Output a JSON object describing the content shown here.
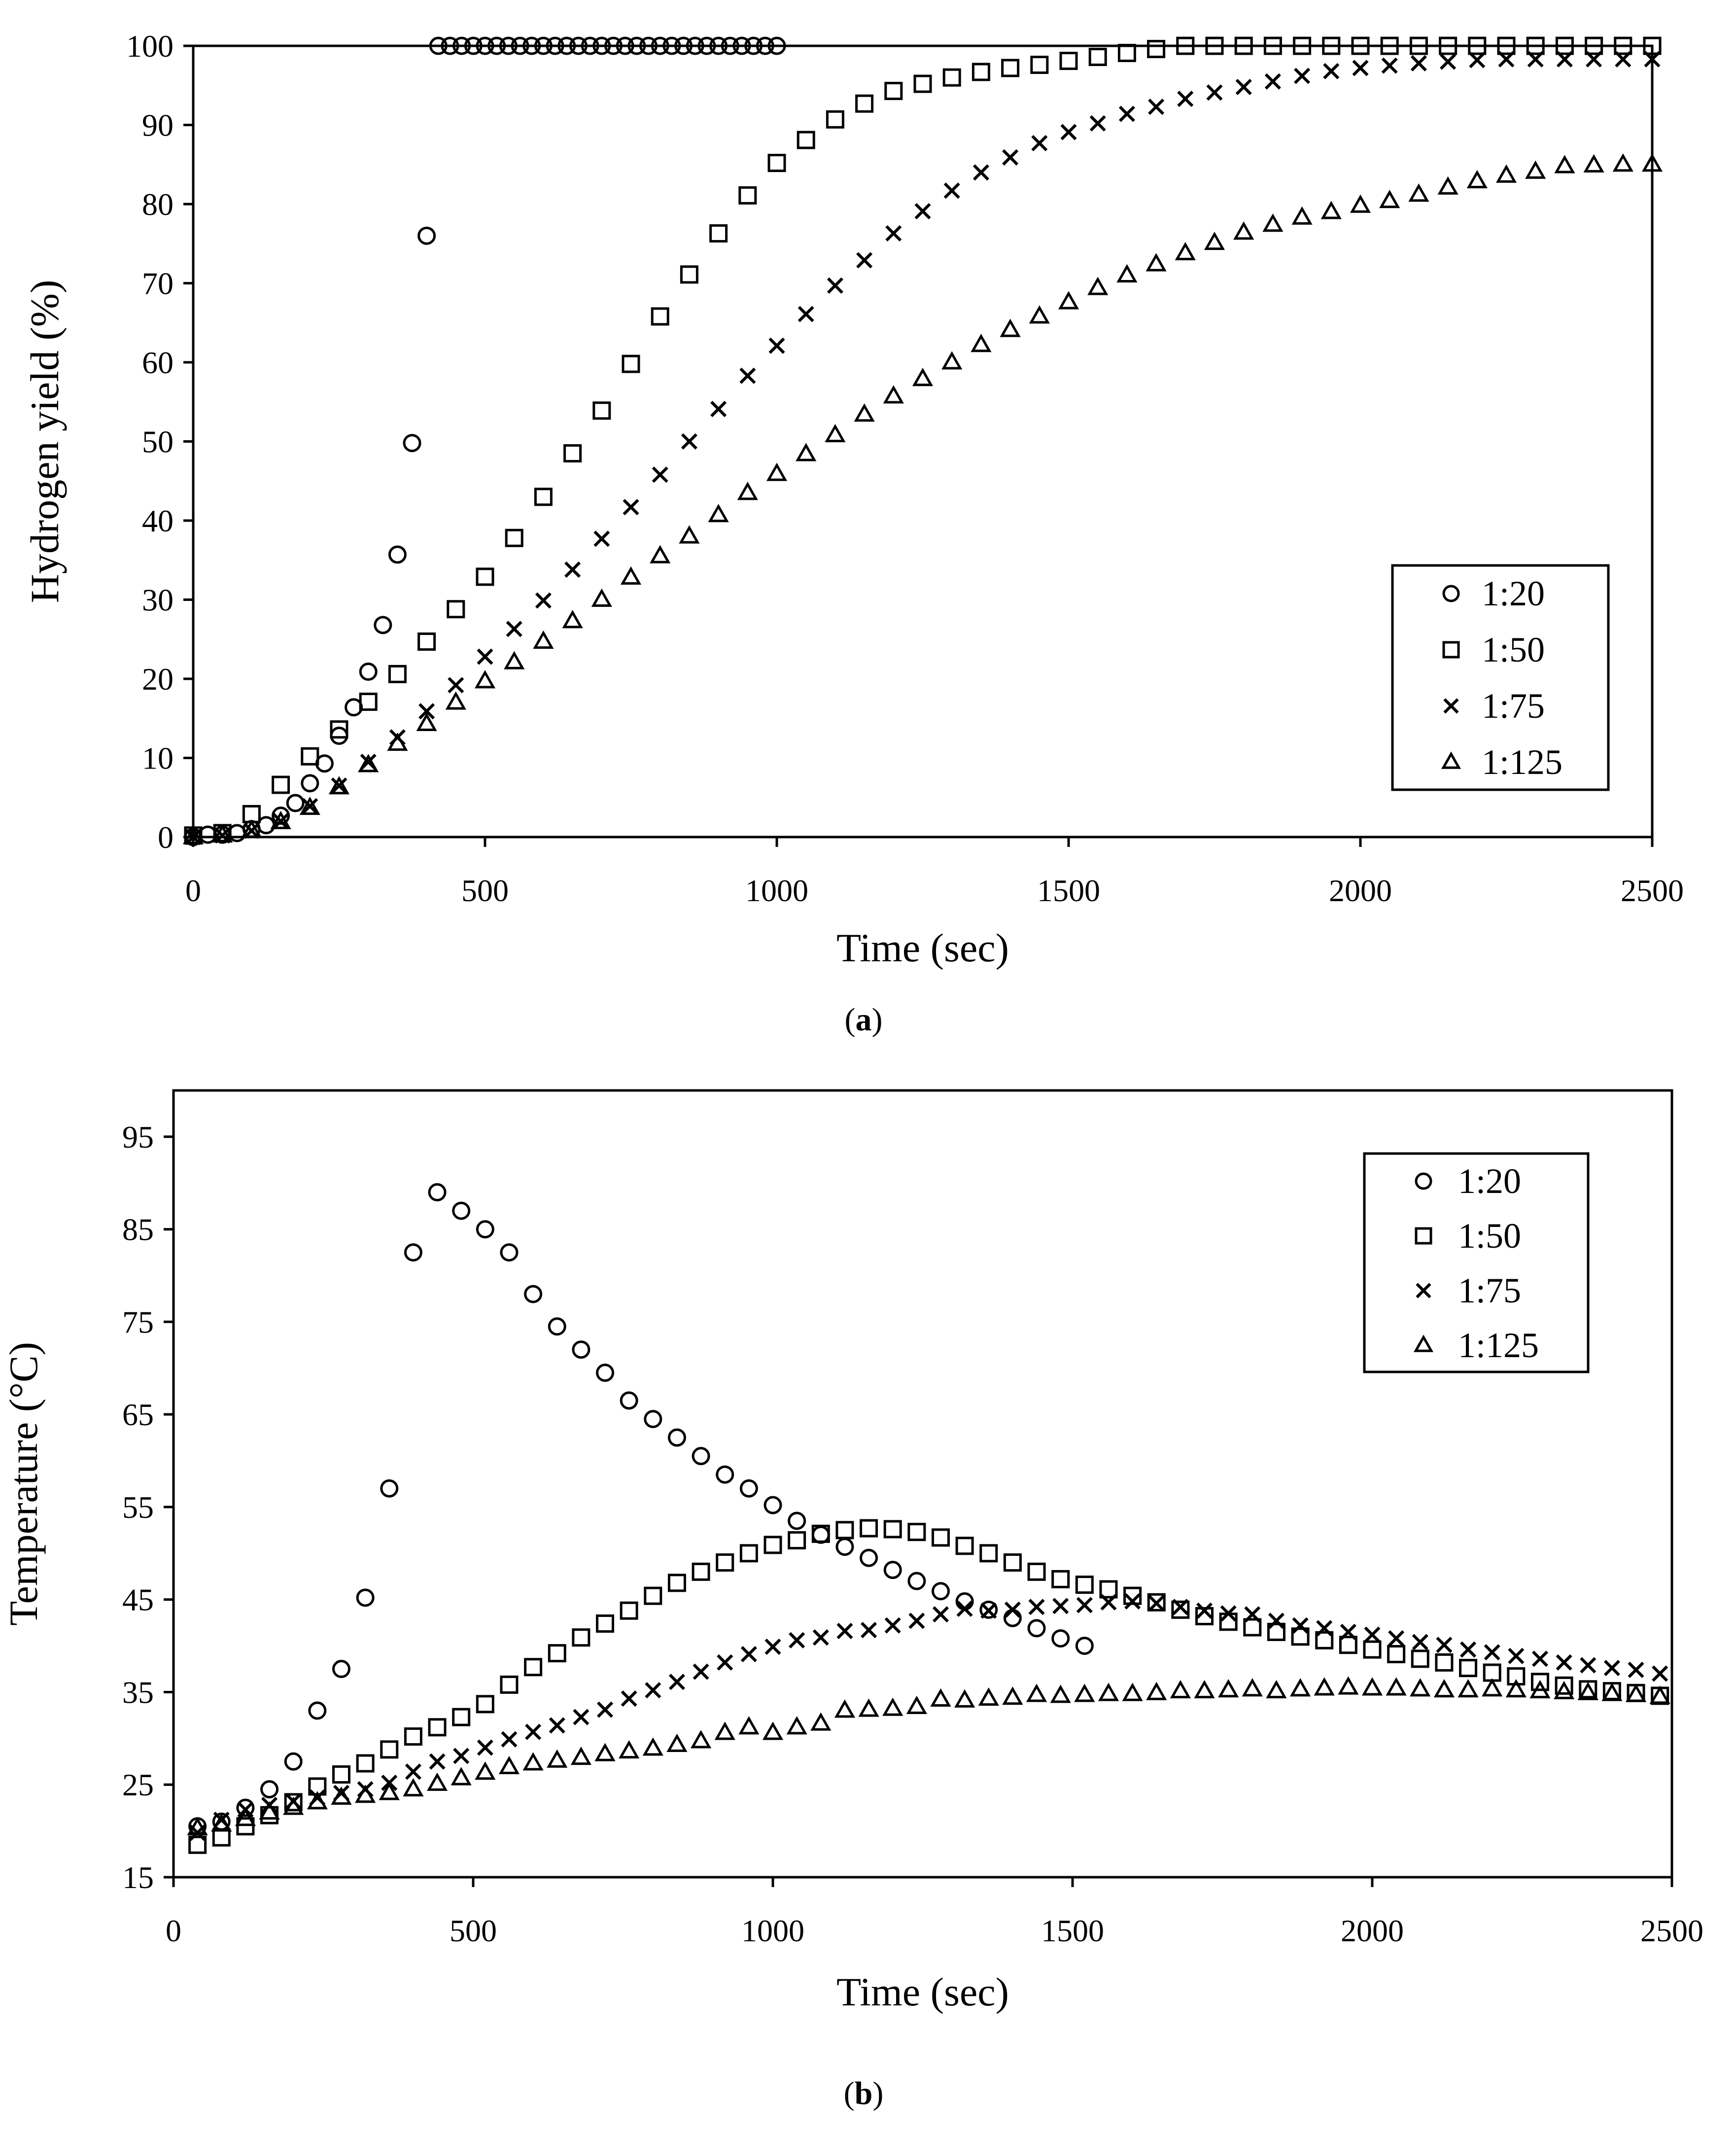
{
  "chart_data": [
    {
      "type": "scatter",
      "panel_label": "(a)",
      "xlabel": "Time (sec)",
      "ylabel": "Hydrogen yield (%)",
      "xlim": [
        0,
        2500
      ],
      "ylim": [
        0,
        100
      ],
      "xticks": [
        0,
        500,
        1000,
        1500,
        2000,
        2500
      ],
      "yticks": [
        0,
        10,
        20,
        30,
        40,
        50,
        60,
        70,
        80,
        90,
        100
      ],
      "grid": false,
      "legend_position": "bottom-right",
      "series": [
        {
          "name": "1:20",
          "marker": "circle",
          "x": [
            0,
            25,
            50,
            75,
            100,
            125,
            150,
            175,
            200,
            225,
            250,
            275,
            300,
            325,
            350,
            375,
            400,
            420,
            440,
            460,
            480,
            500,
            520,
            540,
            560,
            580,
            600,
            620,
            640,
            660,
            680,
            700,
            720,
            740,
            760,
            780,
            800,
            820,
            840,
            860,
            880,
            900,
            920,
            940,
            960,
            980,
            1000
          ],
          "y": [
            0,
            0.3,
            0.3,
            0.5,
            1,
            1.5,
            2.7,
            4.3,
            6.8,
            9.3,
            12.8,
            16.4,
            20.9,
            26.8,
            35.7,
            49.8,
            76,
            100,
            100,
            100,
            100,
            100,
            100,
            100,
            100,
            100,
            100,
            100,
            100,
            100,
            100,
            100,
            100,
            100,
            100,
            100,
            100,
            100,
            100,
            100,
            100,
            100,
            100,
            100,
            100,
            100,
            100
          ]
        },
        {
          "name": "1:50",
          "marker": "square",
          "x": [
            0,
            50,
            100,
            150,
            200,
            250,
            300,
            350,
            400,
            450,
            500,
            550,
            600,
            650,
            700,
            750,
            800,
            850,
            900,
            950,
            1000,
            1050,
            1100,
            1150,
            1200,
            1250,
            1300,
            1350,
            1400,
            1450,
            1500,
            1550,
            1600,
            1650,
            1700,
            1750,
            1800,
            1850,
            1900,
            1950,
            2000,
            2050,
            2100,
            2150,
            2200,
            2250,
            2300,
            2350,
            2400,
            2450,
            2500
          ],
          "y": [
            0.2,
            0.5,
            2.9,
            6.6,
            10.2,
            13.6,
            17.1,
            20.6,
            24.7,
            28.8,
            32.9,
            37.8,
            43,
            48.5,
            53.9,
            59.8,
            65.8,
            71.1,
            76.3,
            81.1,
            85.2,
            88.1,
            90.7,
            92.7,
            94.3,
            95.2,
            96,
            96.7,
            97.2,
            97.6,
            98.1,
            98.6,
            99.1,
            99.6,
            100,
            100,
            100,
            100,
            100,
            100,
            100,
            100,
            100,
            100,
            100,
            100,
            100,
            100,
            100,
            100,
            100
          ]
        },
        {
          "name": "1:75",
          "marker": "x",
          "x": [
            0,
            50,
            100,
            150,
            200,
            250,
            300,
            350,
            400,
            450,
            500,
            550,
            600,
            650,
            700,
            750,
            800,
            850,
            900,
            950,
            1000,
            1050,
            1100,
            1150,
            1200,
            1250,
            1300,
            1350,
            1400,
            1450,
            1500,
            1550,
            1600,
            1650,
            1700,
            1750,
            1800,
            1850,
            1900,
            1950,
            2000,
            2050,
            2100,
            2150,
            2200,
            2250,
            2300,
            2350,
            2400,
            2450,
            2500
          ],
          "y": [
            0,
            0.2,
            0.8,
            2,
            3.9,
            6.5,
            9.5,
            12.6,
            15.9,
            19.2,
            22.8,
            26.3,
            29.9,
            33.8,
            37.7,
            41.7,
            45.8,
            50,
            54.1,
            58.3,
            62.1,
            66.1,
            69.7,
            72.9,
            76.3,
            79.1,
            81.7,
            84,
            85.9,
            87.7,
            89.1,
            90.2,
            91.4,
            92.3,
            93.3,
            94.1,
            94.8,
            95.5,
            96.2,
            96.8,
            97.2,
            97.5,
            97.8,
            98,
            98.2,
            98.3,
            98.3,
            98.3,
            98.3,
            98.3,
            98.3
          ]
        },
        {
          "name": "1:125",
          "marker": "triangle",
          "x": [
            0,
            50,
            100,
            150,
            200,
            250,
            300,
            350,
            400,
            450,
            500,
            550,
            600,
            650,
            700,
            750,
            800,
            850,
            900,
            950,
            1000,
            1050,
            1100,
            1150,
            1200,
            1250,
            1300,
            1350,
            1400,
            1450,
            1500,
            1550,
            1600,
            1650,
            1700,
            1750,
            1800,
            1850,
            1900,
            1950,
            2000,
            2050,
            2100,
            2150,
            2200,
            2250,
            2300,
            2350,
            2400,
            2450,
            2500
          ],
          "y": [
            0,
            0.2,
            0.8,
            1.9,
            3.7,
            6.3,
            9.1,
            11.8,
            14.3,
            17,
            19.7,
            22.1,
            24.7,
            27.3,
            30,
            32.8,
            35.5,
            38,
            40.7,
            43.5,
            45.9,
            48.4,
            50.8,
            53.4,
            55.7,
            57.9,
            60,
            62.2,
            64.1,
            65.8,
            67.6,
            69.4,
            71,
            72.4,
            73.8,
            75.1,
            76.4,
            77.4,
            78.3,
            79,
            79.8,
            80.4,
            81.2,
            82.1,
            82.9,
            83.6,
            84.1,
            84.8,
            84.9,
            85,
            85
          ]
        }
      ]
    },
    {
      "type": "scatter",
      "panel_label": "(b)",
      "xlabel": "Time (sec)",
      "ylabel": "Temperature (°C)",
      "xlim": [
        0,
        2500
      ],
      "ylim": [
        15,
        100
      ],
      "xticks": [
        0,
        500,
        1000,
        1500,
        2000,
        2500
      ],
      "yticks": [
        15,
        25,
        35,
        45,
        55,
        65,
        75,
        85,
        95
      ],
      "grid": false,
      "legend_position": "top-right",
      "series": [
        {
          "name": "1:20",
          "marker": "circle",
          "x": [
            40,
            80,
            120,
            160,
            200,
            240,
            280,
            320,
            360,
            400,
            440,
            480,
            520,
            560,
            600,
            640,
            680,
            720,
            760,
            800,
            840,
            880,
            920,
            960,
            1000,
            1040,
            1080,
            1120,
            1160,
            1200,
            1240,
            1280,
            1320,
            1360,
            1400,
            1440,
            1480,
            1520
          ],
          "y": [
            20.5,
            21,
            22.5,
            24.5,
            27.5,
            33,
            37.5,
            45.2,
            57,
            82.5,
            89,
            87,
            85,
            82.5,
            78,
            74.5,
            72,
            69.5,
            66.5,
            64.5,
            62.5,
            60.5,
            58.5,
            57,
            55.2,
            53.5,
            52,
            50.7,
            49.5,
            48.2,
            47,
            45.9,
            44.8,
            43.9,
            43,
            41.9,
            40.8,
            40
          ]
        },
        {
          "name": "1:50",
          "marker": "square",
          "x": [
            40,
            80,
            120,
            160,
            200,
            240,
            280,
            320,
            360,
            400,
            440,
            480,
            520,
            560,
            600,
            640,
            680,
            720,
            760,
            800,
            840,
            880,
            920,
            960,
            1000,
            1040,
            1080,
            1120,
            1160,
            1200,
            1240,
            1280,
            1320,
            1360,
            1400,
            1440,
            1480,
            1520,
            1560,
            1600,
            1640,
            1680,
            1720,
            1760,
            1800,
            1840,
            1880,
            1920,
            1960,
            2000,
            2040,
            2080,
            2120,
            2160,
            2200,
            2240,
            2280,
            2320,
            2360,
            2400,
            2440,
            2480
          ],
          "y": [
            18.5,
            19.3,
            20.5,
            21.7,
            23.1,
            24.8,
            26.1,
            27.3,
            28.8,
            30.2,
            31.2,
            32.3,
            33.7,
            35.8,
            37.7,
            39.2,
            40.9,
            42.4,
            43.8,
            45.4,
            46.8,
            48,
            49,
            50,
            50.9,
            51.4,
            52.1,
            52.5,
            52.7,
            52.6,
            52.3,
            51.7,
            50.8,
            50,
            49,
            48,
            47.2,
            46.6,
            46.1,
            45.4,
            44.7,
            43.9,
            43.2,
            42.6,
            42,
            41.5,
            41,
            40.6,
            40.1,
            39.6,
            39.1,
            38.6,
            38.2,
            37.6,
            37.1,
            36.7,
            36.1,
            35.7,
            35.3,
            35.1,
            34.9,
            34.6
          ]
        },
        {
          "name": "1:75",
          "marker": "x",
          "x": [
            40,
            80,
            120,
            160,
            200,
            240,
            280,
            320,
            360,
            400,
            440,
            480,
            520,
            560,
            600,
            640,
            680,
            720,
            760,
            800,
            840,
            880,
            920,
            960,
            1000,
            1040,
            1080,
            1120,
            1160,
            1200,
            1240,
            1280,
            1320,
            1360,
            1400,
            1440,
            1480,
            1520,
            1560,
            1600,
            1640,
            1680,
            1720,
            1760,
            1800,
            1840,
            1880,
            1920,
            1960,
            2000,
            2040,
            2080,
            2120,
            2160,
            2200,
            2240,
            2280,
            2320,
            2360,
            2400,
            2440,
            2480
          ],
          "y": [
            19.8,
            21.2,
            22.3,
            22.8,
            23.2,
            23.6,
            24.1,
            24.5,
            25.2,
            26.4,
            27.5,
            28.1,
            29,
            29.9,
            30.7,
            31.4,
            32.3,
            33.1,
            34.3,
            35.2,
            36.1,
            37.2,
            38.2,
            39.1,
            39.9,
            40.6,
            40.9,
            41.6,
            41.7,
            42.2,
            42.7,
            43.4,
            44,
            43.8,
            43.9,
            44.2,
            44.3,
            44.4,
            44.7,
            44.8,
            44.6,
            44.2,
            43.8,
            43.5,
            43.4,
            42.7,
            42.2,
            41.9,
            41.5,
            41.2,
            40.8,
            40.4,
            40.1,
            39.6,
            39.3,
            38.9,
            38.6,
            38.2,
            37.9,
            37.6,
            37.4,
            37
          ]
        },
        {
          "name": "1:125",
          "marker": "triangle",
          "x": [
            40,
            80,
            120,
            160,
            200,
            240,
            280,
            320,
            360,
            400,
            440,
            480,
            520,
            560,
            600,
            640,
            680,
            720,
            760,
            800,
            840,
            880,
            920,
            960,
            1000,
            1040,
            1080,
            1120,
            1160,
            1200,
            1240,
            1280,
            1320,
            1360,
            1400,
            1440,
            1480,
            1520,
            1560,
            1600,
            1640,
            1680,
            1720,
            1760,
            1800,
            1840,
            1880,
            1920,
            1960,
            2000,
            2040,
            2080,
            2120,
            2160,
            2200,
            2240,
            2280,
            2320,
            2360,
            2400,
            2440,
            2480
          ],
          "y": [
            20.3,
            20.7,
            21.3,
            22,
            22.5,
            23.1,
            23.6,
            23.8,
            24.1,
            24.5,
            25.1,
            25.7,
            26.3,
            26.9,
            27.3,
            27.6,
            27.9,
            28.3,
            28.6,
            28.9,
            29.3,
            29.7,
            30.6,
            31.2,
            30.6,
            31.2,
            31.6,
            33,
            33.1,
            33.2,
            33.4,
            34.2,
            34.1,
            34.3,
            34.4,
            34.7,
            34.6,
            34.7,
            34.8,
            34.8,
            34.9,
            35.1,
            35.1,
            35.2,
            35.3,
            35.1,
            35.3,
            35.4,
            35.5,
            35.4,
            35.4,
            35.3,
            35.2,
            35.2,
            35.3,
            35.2,
            35.1,
            35,
            34.9,
            34.8,
            34.7,
            34.5
          ]
        }
      ]
    }
  ]
}
